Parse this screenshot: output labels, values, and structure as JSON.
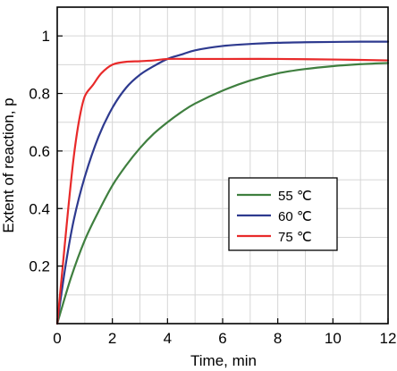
{
  "chart_data": {
    "type": "line",
    "xlabel": "Time, min",
    "ylabel": "Extent of reaction, p",
    "xlim": [
      0,
      12
    ],
    "ylim": [
      0,
      1.1
    ],
    "x_ticks": [
      "0",
      "2",
      "4",
      "6",
      "8",
      "10",
      "12"
    ],
    "y_ticks": [
      "0.2",
      "0.4",
      "0.6",
      "0.8",
      "1"
    ],
    "grid": true,
    "legend_position": "center-right",
    "series": [
      {
        "name": "55 ℃",
        "color": "#3f7f3f",
        "x": [
          0,
          0.5,
          1,
          1.5,
          2,
          2.5,
          3,
          3.5,
          4,
          4.5,
          5,
          6,
          7,
          8,
          9,
          10,
          11,
          12
        ],
        "y": [
          0,
          0.16,
          0.29,
          0.39,
          0.48,
          0.55,
          0.61,
          0.66,
          0.7,
          0.735,
          0.765,
          0.81,
          0.845,
          0.87,
          0.885,
          0.895,
          0.902,
          0.906
        ]
      },
      {
        "name": "60 ℃",
        "color": "#2e3a8f",
        "x": [
          0,
          0.3,
          0.6,
          1,
          1.5,
          2,
          2.5,
          3,
          3.5,
          4,
          4.5,
          5,
          6,
          7,
          8,
          9,
          10,
          11,
          12
        ],
        "y": [
          0,
          0.2,
          0.36,
          0.51,
          0.65,
          0.75,
          0.82,
          0.865,
          0.895,
          0.92,
          0.935,
          0.95,
          0.965,
          0.972,
          0.976,
          0.978,
          0.979,
          0.98,
          0.98
        ]
      },
      {
        "name": "75 ℃",
        "color": "#e82a2a",
        "x": [
          0,
          0.2,
          0.4,
          0.6,
          0.8,
          1,
          1.3,
          1.6,
          2,
          2.5,
          3,
          3.5,
          4,
          5,
          6,
          8,
          10,
          12
        ],
        "y": [
          0,
          0.2,
          0.4,
          0.58,
          0.71,
          0.79,
          0.83,
          0.87,
          0.9,
          0.91,
          0.912,
          0.915,
          0.92,
          0.92,
          0.92,
          0.92,
          0.918,
          0.915
        ]
      }
    ]
  }
}
